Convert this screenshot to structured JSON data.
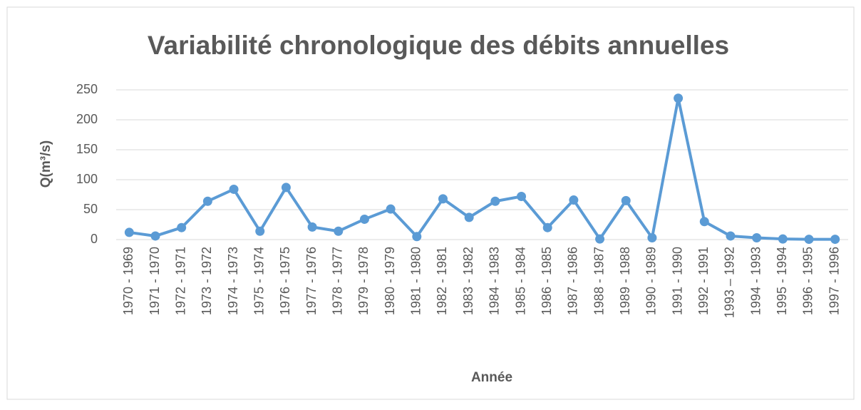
{
  "chart_data": {
    "type": "line",
    "title": "Variabilité chronologique des débits annuelles",
    "xlabel": "Année",
    "ylabel": "Q(m³/s)",
    "categories": [
      "1970 - 1969",
      "1971 - 1970",
      "1972 - 1971",
      "1973 - 1972",
      "1974 - 1973",
      "1975 - 1974",
      "1976 - 1975",
      "1977 - 1976",
      "1978 - 1977",
      "1979 - 1978",
      "1980 - 1979",
      "1981 - 1980",
      "1982 - 1981",
      "1983 - 1982",
      "1984 - 1983",
      "1985 - 1984",
      "1986 - 1985",
      "1987 - 1986",
      "1988 - 1987",
      "1989 - 1988",
      "1990 - 1989",
      "1991 - 1990",
      "1992 - 1991",
      "1993 – 1992",
      "1994 - 1993",
      "1995 - 1994",
      "1996 - 1995",
      "1997 - 1996"
    ],
    "series": [
      {
        "name": "Q",
        "color": "#5b9bd5",
        "values": [
          12,
          6,
          20,
          64,
          84,
          14,
          87,
          21,
          14,
          34,
          51,
          5,
          68,
          37,
          64,
          72,
          20,
          66,
          1,
          65,
          3,
          236,
          30,
          6,
          3,
          1,
          0.5,
          0.5
        ]
      }
    ],
    "ylim": [
      0,
      250
    ],
    "yticks": [
      0,
      50,
      100,
      150,
      200,
      250
    ],
    "grid": true
  }
}
